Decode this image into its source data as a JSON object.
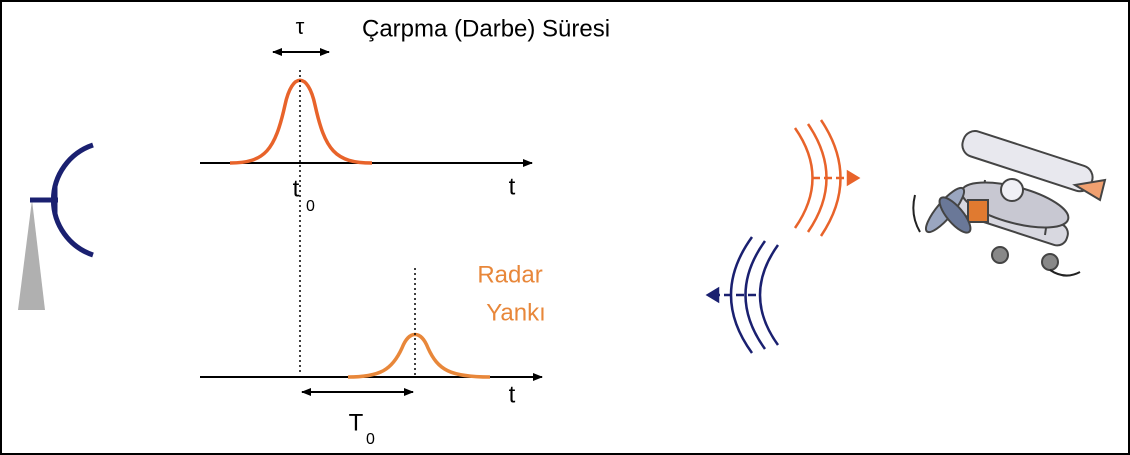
{
  "title": "Çarpma (Darbe) Süresi",
  "pulse_width_label": "τ",
  "transmit": {
    "time_label": "t",
    "time_subscript": "0",
    "axis_label": "t"
  },
  "echo": {
    "label_lines": [
      "Radar",
      "Yankı"
    ],
    "delay_label": "T",
    "delay_subscript": "0",
    "axis_label": "t"
  }
}
